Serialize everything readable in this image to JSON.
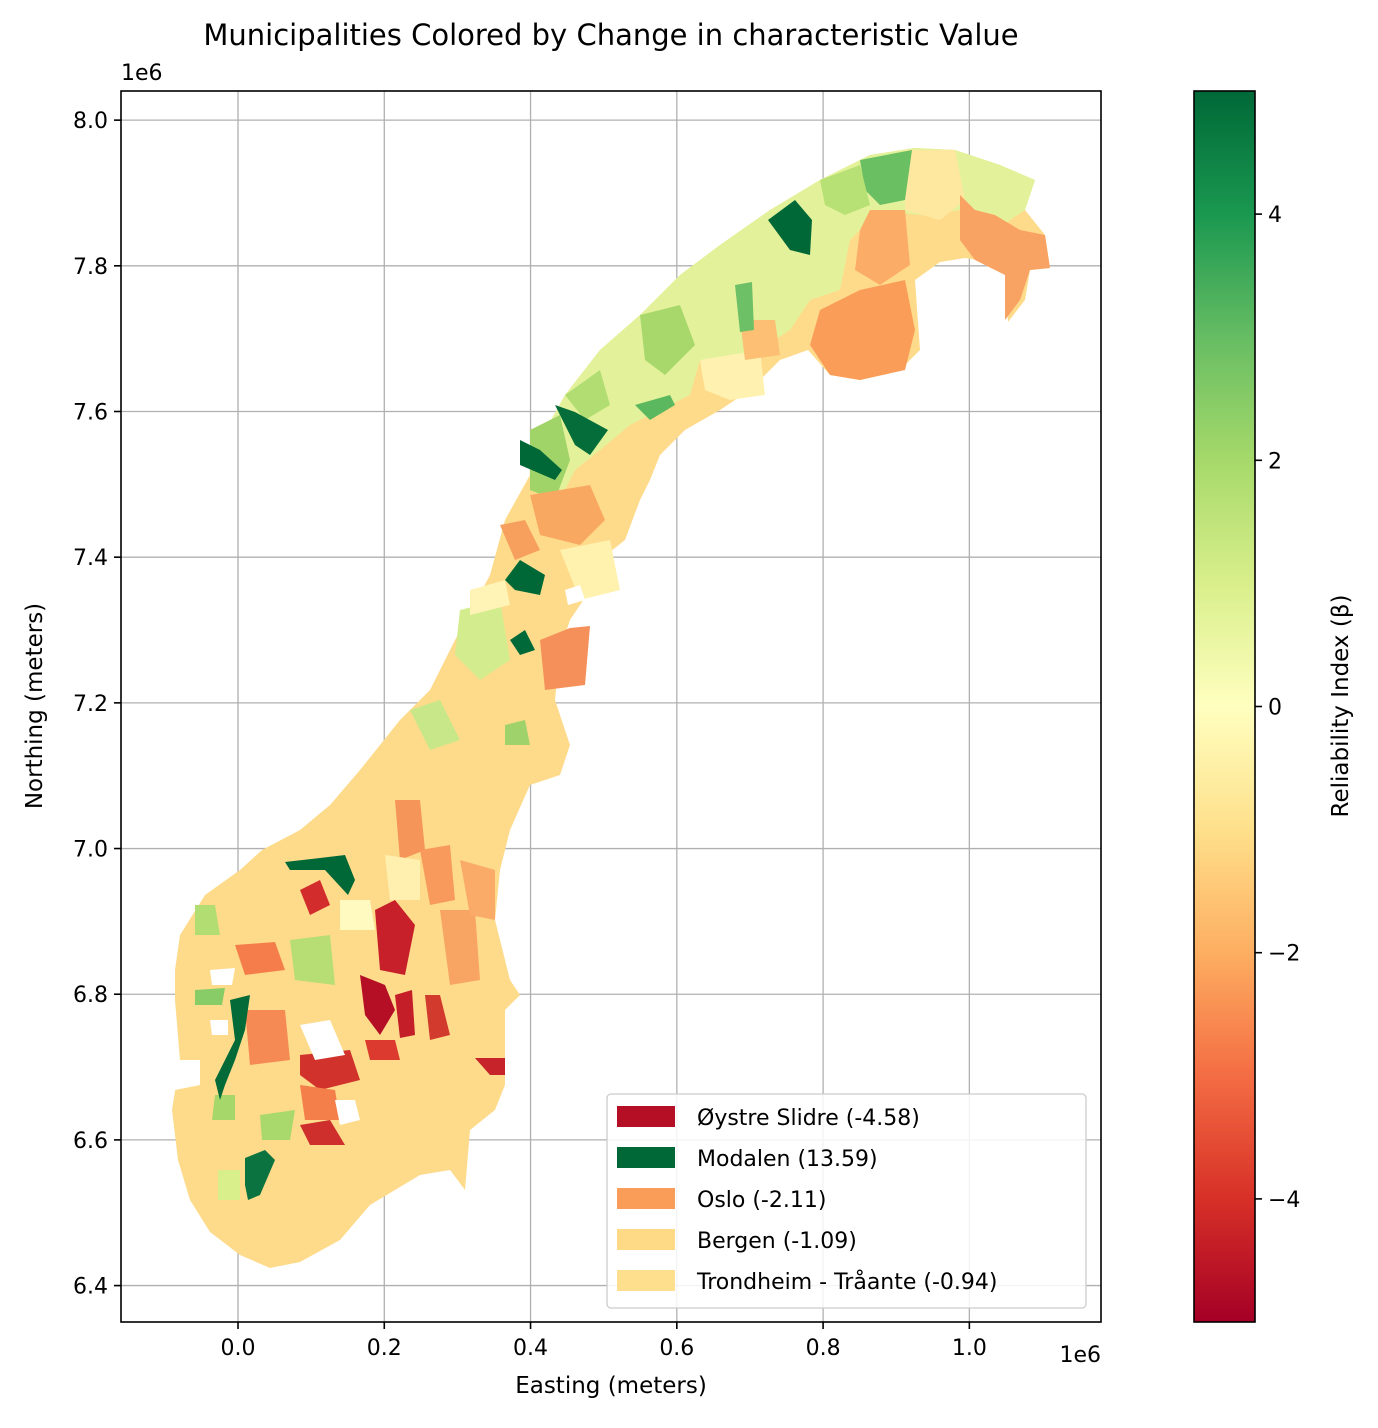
{
  "chart_data": {
    "type": "choropleth-map",
    "title": "Municipalities Colored by Change in characteristic Value",
    "xlabel": "Easting (meters)",
    "ylabel": "Northing (meters)",
    "x_offset_label": "1e6",
    "y_offset_label": "1e6",
    "xlim": [
      -0.16,
      1.18
    ],
    "ylim": [
      6.35,
      8.04
    ],
    "xticks": [
      0.0,
      0.2,
      0.4,
      0.6,
      0.8,
      1.0
    ],
    "xtick_labels": [
      "0.0",
      "0.2",
      "0.4",
      "0.6",
      "0.8",
      "1.0"
    ],
    "yticks": [
      6.4,
      6.6,
      6.8,
      7.0,
      7.2,
      7.4,
      7.6,
      7.8,
      8.0
    ],
    "ytick_labels": [
      "6.4",
      "6.6",
      "6.8",
      "7.0",
      "7.2",
      "7.4",
      "7.6",
      "7.8",
      "8.0"
    ],
    "grid": true,
    "colorbar": {
      "label": "Reliability Index (β)",
      "colormap": "RdYlGn",
      "range": [
        -5,
        5
      ],
      "ticks": [
        -4,
        -2,
        0,
        2,
        4
      ],
      "tick_labels": [
        "−4",
        "−2",
        "0",
        "2",
        "4"
      ]
    },
    "legend": {
      "position": "lower right",
      "entries": [
        {
          "label": "Øystre Slidre (-4.58)",
          "value": -4.58,
          "color": "#b50f26"
        },
        {
          "label": "Modalen (13.59)",
          "value": 13.59,
          "color": "#006837"
        },
        {
          "label": "Oslo (-2.11)",
          "value": -2.11,
          "color": "#f99d59"
        },
        {
          "label": "Bergen (-1.09)",
          "value": -1.09,
          "color": "#fed986"
        },
        {
          "label": "Trondheim - Tråante (-0.94)",
          "value": -0.94,
          "color": "#fedf8e"
        }
      ]
    }
  }
}
